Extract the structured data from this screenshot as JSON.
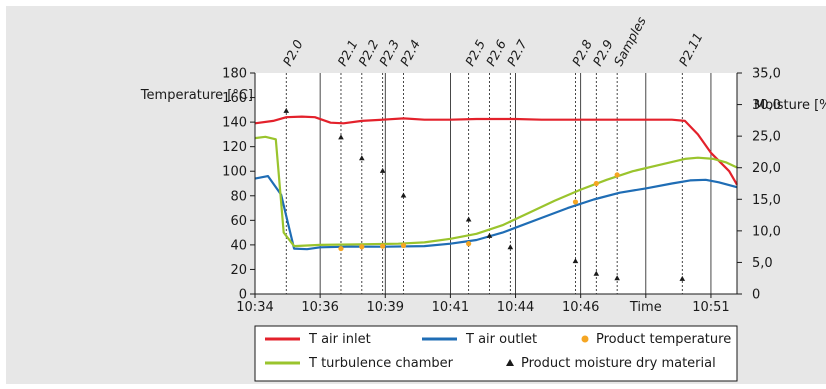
{
  "chart_data": {
    "type": "line",
    "title": "",
    "xlabel": "Time",
    "ylabel_left": "Temperature [°C]",
    "ylabel_right": "Moisture [%]",
    "xlim": [
      0,
      18.5
    ],
    "ylim_left": [
      0,
      180
    ],
    "ylim_right": [
      0,
      35
    ],
    "x_ticks": [
      {
        "x": 0,
        "label": "10:34"
      },
      {
        "x": 2.5,
        "label": "10:36"
      },
      {
        "x": 5,
        "label": "10:39"
      },
      {
        "x": 7.5,
        "label": "10:41"
      },
      {
        "x": 10,
        "label": "10:44"
      },
      {
        "x": 12.5,
        "label": "10:46"
      },
      {
        "x": 15,
        "label": "Time"
      },
      {
        "x": 17.5,
        "label": "10:51"
      }
    ],
    "y_ticks_left": [
      "0",
      "20",
      "40",
      "60",
      "80",
      "100",
      "120",
      "140",
      "160",
      "180"
    ],
    "y_ticks_right": [
      "0",
      "5,0",
      "10,0",
      "15,0",
      "20,0",
      "25,0",
      "30,0",
      "35,0"
    ],
    "grid": {
      "vertical": true,
      "horizontal": false
    },
    "sample_markers": [
      {
        "x": 1.2,
        "label": "P2.0"
      },
      {
        "x": 3.3,
        "label": "P2.1"
      },
      {
        "x": 4.1,
        "label": "P2.2"
      },
      {
        "x": 4.9,
        "label": "P2.3"
      },
      {
        "x": 5.7,
        "label": "P2.4"
      },
      {
        "x": 8.2,
        "label": "P2.5"
      },
      {
        "x": 9.0,
        "label": "P2.6"
      },
      {
        "x": 9.8,
        "label": "P2.7"
      },
      {
        "x": 12.3,
        "label": "P2.8"
      },
      {
        "x": 13.1,
        "label": "P2.9"
      },
      {
        "x": 13.9,
        "label": "Samples"
      },
      {
        "x": 16.4,
        "label": "P2.11"
      }
    ],
    "series": [
      {
        "name": "T air inlet",
        "kind": "line",
        "axis": "left",
        "color": "#e3212b",
        "points": [
          [
            0,
            139
          ],
          [
            0.7,
            141
          ],
          [
            1.2,
            144
          ],
          [
            1.8,
            144.5
          ],
          [
            2.3,
            144
          ],
          [
            2.9,
            139.5
          ],
          [
            3.4,
            139
          ],
          [
            4.1,
            141
          ],
          [
            4.9,
            142
          ],
          [
            5.7,
            143
          ],
          [
            6.5,
            142
          ],
          [
            7.5,
            142
          ],
          [
            8.5,
            142.5
          ],
          [
            10,
            142.5
          ],
          [
            11,
            142
          ],
          [
            12,
            142
          ],
          [
            13,
            142
          ],
          [
            14,
            142
          ],
          [
            15,
            142
          ],
          [
            16,
            142
          ],
          [
            16.5,
            141
          ],
          [
            17,
            130
          ],
          [
            17.5,
            115
          ],
          [
            18.2,
            100
          ],
          [
            18.5,
            89
          ]
        ]
      },
      {
        "name": "T air outlet",
        "kind": "line",
        "axis": "left",
        "color": "#1f6db5",
        "points": [
          [
            0,
            94
          ],
          [
            0.5,
            96
          ],
          [
            1.0,
            81
          ],
          [
            1.5,
            37
          ],
          [
            2,
            36.5
          ],
          [
            2.5,
            38
          ],
          [
            3.5,
            38.5
          ],
          [
            5,
            38.5
          ],
          [
            6.5,
            39
          ],
          [
            7.5,
            41
          ],
          [
            8.5,
            44
          ],
          [
            9.5,
            50
          ],
          [
            10,
            54
          ],
          [
            11,
            62
          ],
          [
            12,
            70
          ],
          [
            13,
            77
          ],
          [
            14,
            82.5
          ],
          [
            15,
            86
          ],
          [
            16,
            90
          ],
          [
            16.7,
            92.5
          ],
          [
            17.3,
            93
          ],
          [
            17.8,
            91
          ],
          [
            18.5,
            87
          ]
        ]
      },
      {
        "name": "T turbulence chamber",
        "kind": "line",
        "axis": "left",
        "color": "#9ac42d",
        "points": [
          [
            0,
            127
          ],
          [
            0.4,
            128
          ],
          [
            0.8,
            126
          ],
          [
            1.1,
            50
          ],
          [
            1.5,
            39
          ],
          [
            2.5,
            40
          ],
          [
            4,
            40.5
          ],
          [
            5.5,
            41
          ],
          [
            6.5,
            42
          ],
          [
            7.5,
            45
          ],
          [
            8.5,
            49
          ],
          [
            9.5,
            56
          ],
          [
            10.5,
            66
          ],
          [
            11.5,
            76
          ],
          [
            12.5,
            85
          ],
          [
            13.5,
            93
          ],
          [
            14.5,
            100
          ],
          [
            15.5,
            105
          ],
          [
            16.5,
            110
          ],
          [
            17.0,
            111
          ],
          [
            17.6,
            110
          ],
          [
            18.1,
            107
          ],
          [
            18.5,
            103
          ]
        ]
      },
      {
        "name": "Product temperature",
        "kind": "dots",
        "axis": "left",
        "color": "#f5a623",
        "points": [
          [
            3.3,
            37
          ],
          [
            4.1,
            38.5
          ],
          [
            4.9,
            39
          ],
          [
            5.7,
            39.5
          ],
          [
            8.2,
            41
          ],
          [
            12.3,
            75
          ],
          [
            13.1,
            90
          ],
          [
            13.9,
            97
          ]
        ]
      },
      {
        "name": "Product moisture dry material",
        "kind": "triangles",
        "axis": "right",
        "color": "#1a1a1a",
        "points": [
          [
            1.2,
            29
          ],
          [
            3.3,
            24.8
          ],
          [
            4.1,
            21.5
          ],
          [
            4.9,
            19.5
          ],
          [
            5.7,
            15.6
          ],
          [
            8.2,
            11.8
          ],
          [
            9.0,
            9.2
          ],
          [
            9.8,
            7.4
          ],
          [
            12.3,
            5.2
          ],
          [
            13.1,
            3.2
          ],
          [
            13.9,
            2.5
          ],
          [
            16.4,
            2.4
          ]
        ]
      }
    ],
    "legend": {
      "placement": "bottom",
      "entries": [
        "T air inlet",
        "T air outlet",
        "Product temperature",
        "T turbulence chamber",
        "Product moisture dry material"
      ]
    }
  }
}
